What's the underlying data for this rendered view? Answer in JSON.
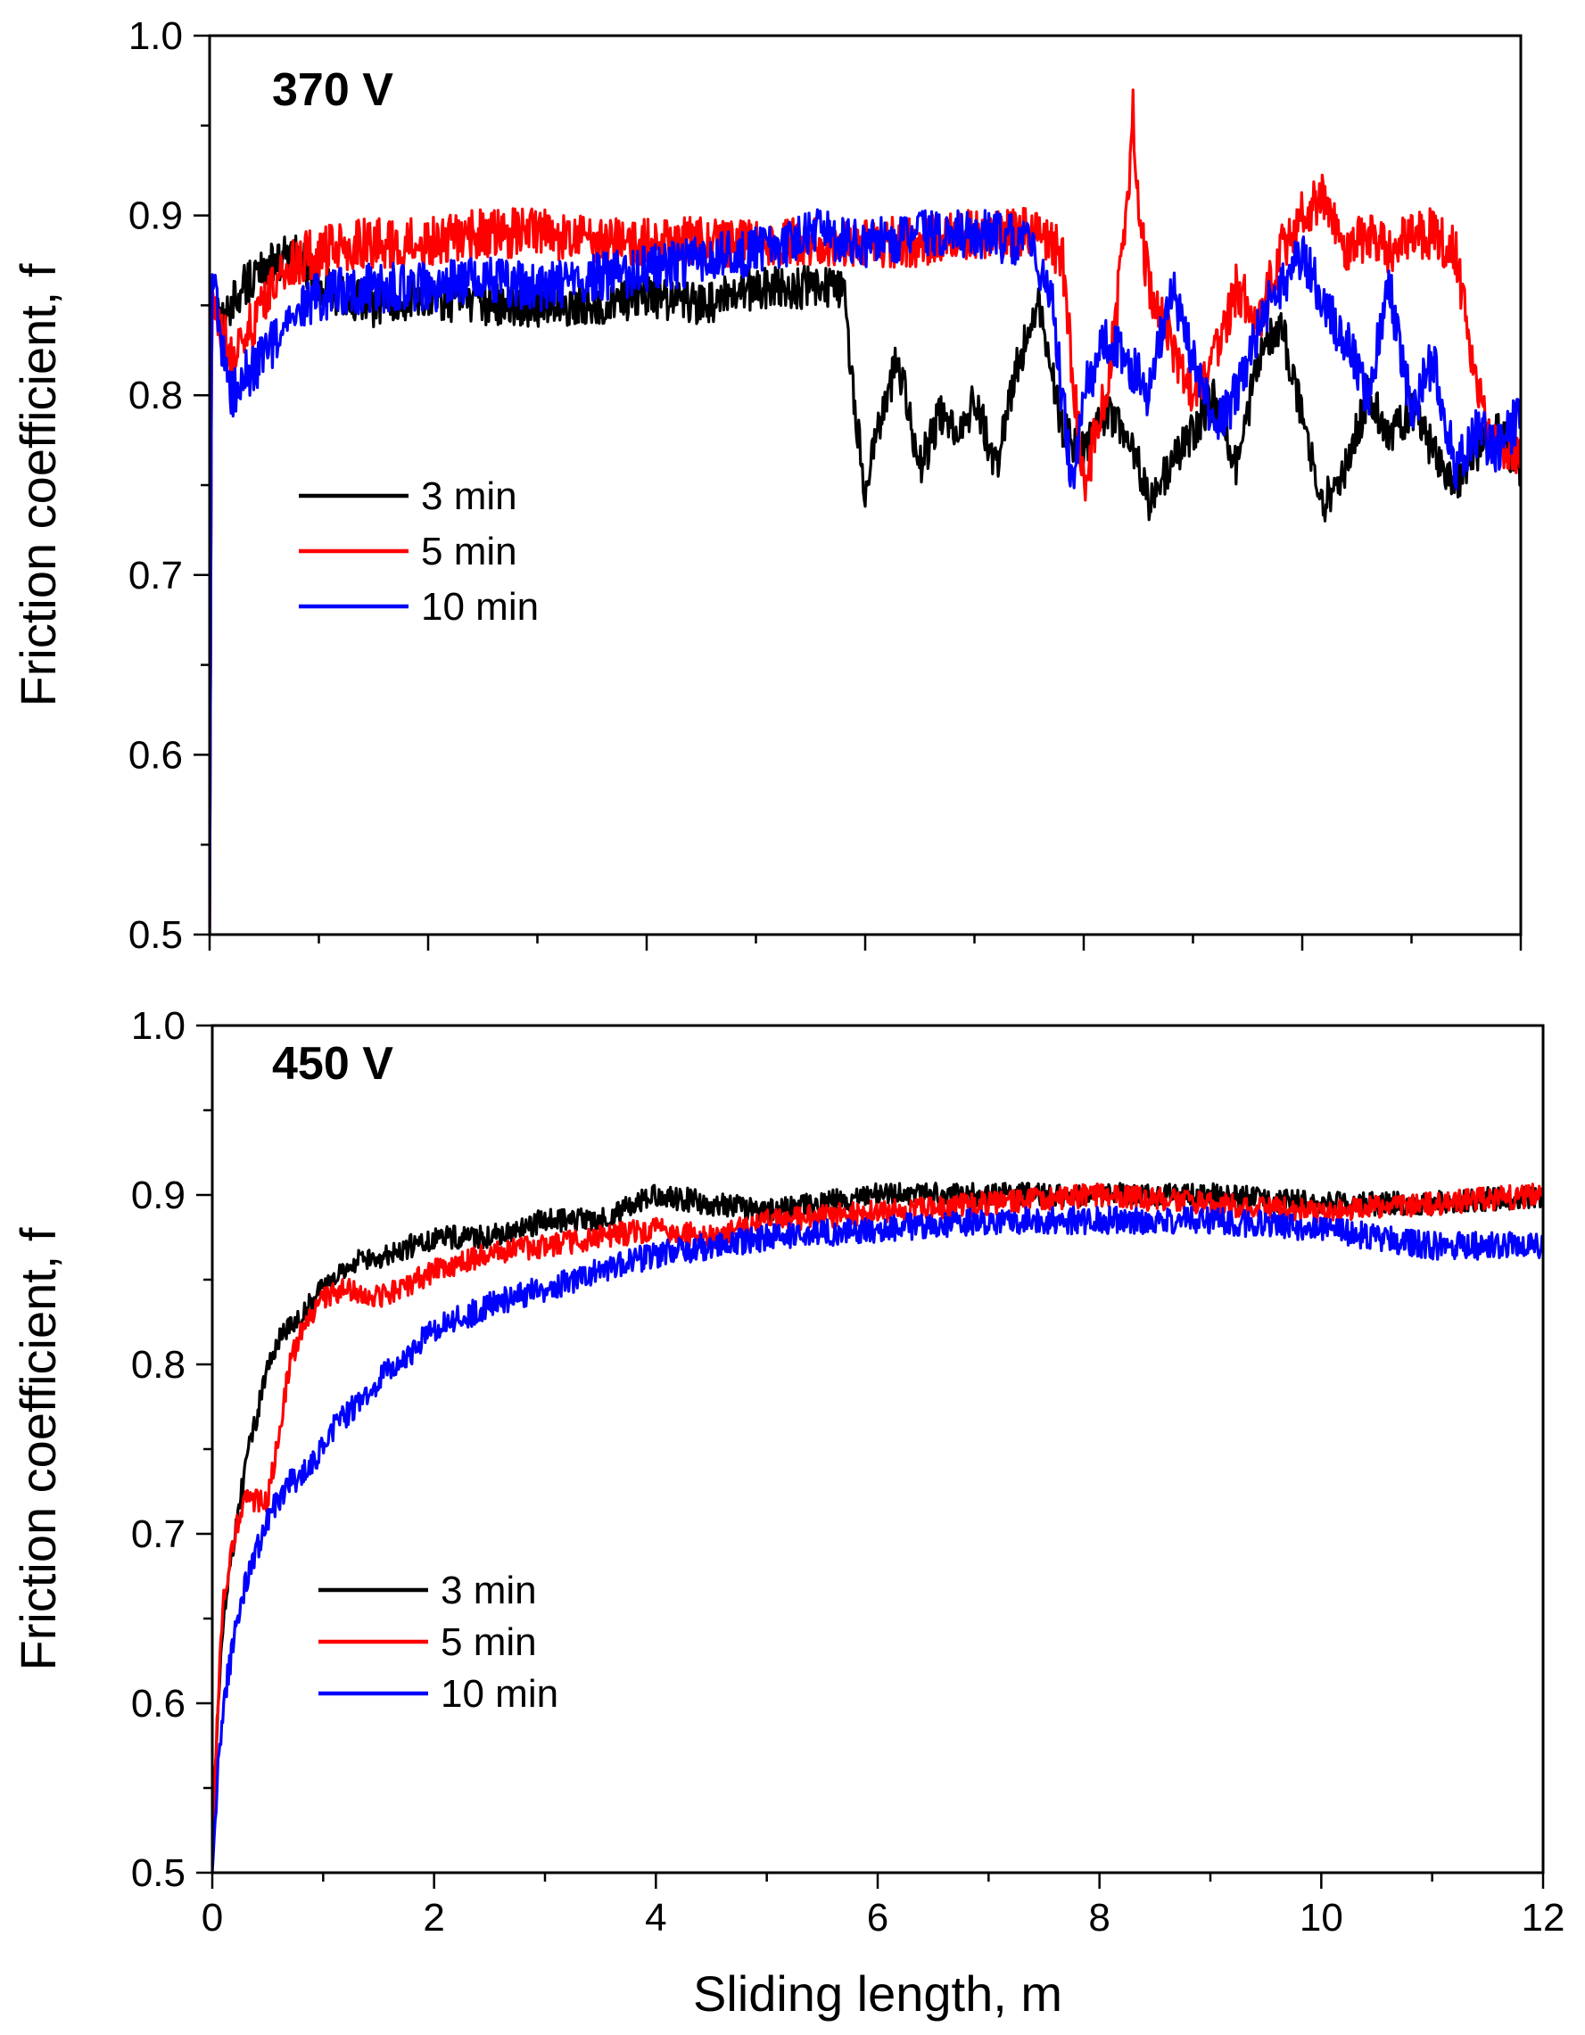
{
  "chart_data": [
    {
      "type": "line",
      "title": "370 V",
      "xlabel": "",
      "ylabel": "Friction coefficient, f",
      "xlim": [
        0,
        12
      ],
      "ylim": [
        0.5,
        1.0
      ],
      "x_ticks": [
        0,
        2,
        4,
        6,
        8,
        10,
        12
      ],
      "x_tick_labels": [
        "",
        "",
        "",
        "",
        "",
        "",
        ""
      ],
      "y_ticks": [
        0.5,
        0.6,
        0.7,
        0.8,
        0.9,
        1.0
      ],
      "y_tick_labels": [
        "0.5",
        "0.6",
        "0.7",
        "0.8",
        "0.9",
        "1.0"
      ],
      "legend_position": "middle-left",
      "series": [
        {
          "name": "3 min",
          "color": "#000000",
          "x": [
            0,
            0.02,
            0.1,
            0.3,
            0.5,
            0.8,
            1.0,
            1.5,
            2.0,
            2.5,
            3.0,
            3.5,
            4.0,
            4.5,
            5.0,
            5.5,
            5.8,
            5.9,
            6.0,
            6.1,
            6.3,
            6.5,
            6.7,
            6.9,
            7.0,
            7.2,
            7.4,
            7.6,
            7.8,
            8.0,
            8.2,
            8.4,
            8.6,
            8.8,
            9.0,
            9.2,
            9.4,
            9.6,
            9.8,
            10.0,
            10.2,
            10.4,
            10.6,
            10.8,
            11.0,
            11.2,
            11.4,
            11.6,
            11.8,
            12.0
          ],
          "values": [
            0.5,
            0.86,
            0.84,
            0.86,
            0.87,
            0.88,
            0.86,
            0.85,
            0.855,
            0.85,
            0.85,
            0.85,
            0.855,
            0.85,
            0.86,
            0.86,
            0.86,
            0.8,
            0.74,
            0.78,
            0.82,
            0.76,
            0.79,
            0.78,
            0.8,
            0.76,
            0.82,
            0.85,
            0.78,
            0.77,
            0.79,
            0.78,
            0.74,
            0.76,
            0.78,
            0.8,
            0.76,
            0.82,
            0.84,
            0.79,
            0.74,
            0.76,
            0.8,
            0.78,
            0.79,
            0.77,
            0.75,
            0.77,
            0.78,
            0.76
          ]
        },
        {
          "name": "5 min",
          "color": "#ff0000",
          "x": [
            0,
            0.02,
            0.1,
            0.2,
            0.4,
            0.6,
            0.8,
            1.0,
            1.5,
            2.0,
            2.5,
            3.0,
            3.5,
            4.0,
            4.5,
            5.0,
            5.5,
            6.0,
            6.5,
            7.0,
            7.5,
            7.8,
            7.9,
            8.0,
            8.2,
            8.4,
            8.45,
            8.5,
            8.6,
            8.8,
            9.0,
            9.2,
            9.4,
            9.6,
            9.8,
            10.0,
            10.2,
            10.4,
            10.6,
            10.8,
            11.0,
            11.2,
            11.4,
            11.6,
            11.8,
            12.0
          ],
          "values": [
            0.5,
            0.86,
            0.84,
            0.82,
            0.84,
            0.86,
            0.875,
            0.88,
            0.885,
            0.885,
            0.89,
            0.89,
            0.885,
            0.885,
            0.885,
            0.885,
            0.885,
            0.885,
            0.885,
            0.89,
            0.89,
            0.88,
            0.81,
            0.75,
            0.8,
            0.9,
            0.96,
            0.9,
            0.86,
            0.83,
            0.8,
            0.82,
            0.86,
            0.84,
            0.88,
            0.9,
            0.91,
            0.88,
            0.89,
            0.88,
            0.89,
            0.89,
            0.88,
            0.8,
            0.77,
            0.77
          ]
        },
        {
          "name": "10 min",
          "color": "#0000ff",
          "x": [
            0,
            0.02,
            0.1,
            0.2,
            0.3,
            0.5,
            0.7,
            1.0,
            1.5,
            2.0,
            2.5,
            3.0,
            3.5,
            4.0,
            4.5,
            5.0,
            5.5,
            6.0,
            6.5,
            7.0,
            7.5,
            7.7,
            7.8,
            7.9,
            8.0,
            8.2,
            8.4,
            8.6,
            8.8,
            9.0,
            9.2,
            9.4,
            9.6,
            9.8,
            10.0,
            10.2,
            10.4,
            10.6,
            10.8,
            11.0,
            11.2,
            11.4,
            11.6,
            11.8,
            12.0
          ],
          "values": [
            0.5,
            0.87,
            0.83,
            0.8,
            0.81,
            0.82,
            0.84,
            0.855,
            0.86,
            0.86,
            0.865,
            0.86,
            0.865,
            0.87,
            0.875,
            0.88,
            0.89,
            0.885,
            0.89,
            0.89,
            0.885,
            0.86,
            0.8,
            0.75,
            0.8,
            0.83,
            0.82,
            0.8,
            0.86,
            0.82,
            0.78,
            0.8,
            0.84,
            0.86,
            0.88,
            0.85,
            0.83,
            0.8,
            0.86,
            0.79,
            0.82,
            0.76,
            0.78,
            0.77,
            0.79
          ]
        }
      ]
    },
    {
      "type": "line",
      "title": "450 V",
      "xlabel": "Sliding length, m",
      "ylabel": "Friction coefficient, f",
      "xlim": [
        0,
        12
      ],
      "ylim": [
        0.5,
        1.0
      ],
      "x_ticks": [
        0,
        2,
        4,
        6,
        8,
        10,
        12
      ],
      "x_tick_labels": [
        "0",
        "2",
        "4",
        "6",
        "8",
        "10",
        "12"
      ],
      "y_ticks": [
        0.5,
        0.6,
        0.7,
        0.8,
        0.9,
        1.0
      ],
      "y_tick_labels": [
        "0.5",
        "0.6",
        "0.7",
        "0.8",
        "0.9",
        "1.0"
      ],
      "legend_position": "lower-left",
      "series": [
        {
          "name": "3 min",
          "color": "#000000",
          "x": [
            0,
            0.05,
            0.1,
            0.2,
            0.3,
            0.4,
            0.5,
            0.6,
            0.8,
            1.0,
            1.3,
            1.6,
            2.0,
            2.5,
            3.0,
            3.5,
            4.0,
            4.5,
            5.0,
            6.0,
            7.0,
            8.0,
            9.0,
            10.0,
            11.0,
            12.0
          ],
          "values": [
            0.52,
            0.6,
            0.65,
            0.7,
            0.74,
            0.77,
            0.8,
            0.815,
            0.83,
            0.845,
            0.86,
            0.865,
            0.875,
            0.875,
            0.885,
            0.885,
            0.9,
            0.895,
            0.89,
            0.9,
            0.9,
            0.9,
            0.9,
            0.895,
            0.895,
            0.9
          ]
        },
        {
          "name": "5 min",
          "color": "#ff0000",
          "x": [
            0,
            0.05,
            0.1,
            0.2,
            0.3,
            0.4,
            0.5,
            0.6,
            0.7,
            0.8,
            1.0,
            1.2,
            1.5,
            1.7,
            2.0,
            2.5,
            3.0,
            3.5,
            4.0,
            4.5,
            5.0,
            6.0,
            7.0,
            8.0,
            9.0,
            10.0,
            11.0,
            12.0
          ],
          "values": [
            0.52,
            0.6,
            0.66,
            0.7,
            0.72,
            0.72,
            0.72,
            0.76,
            0.8,
            0.82,
            0.84,
            0.845,
            0.84,
            0.845,
            0.855,
            0.865,
            0.87,
            0.875,
            0.88,
            0.875,
            0.885,
            0.89,
            0.895,
            0.9,
            0.895,
            0.89,
            0.895,
            0.9
          ]
        },
        {
          "name": "10 min",
          "color": "#0000ff",
          "x": [
            0,
            0.05,
            0.1,
            0.2,
            0.3,
            0.4,
            0.5,
            0.7,
            0.9,
            1.0,
            1.2,
            1.5,
            2.0,
            2.5,
            3.0,
            3.5,
            4.0,
            4.5,
            5.0,
            6.0,
            7.0,
            8.0,
            9.0,
            10.0,
            10.5,
            11.0,
            11.5,
            12.0
          ],
          "values": [
            0.5,
            0.56,
            0.6,
            0.64,
            0.67,
            0.69,
            0.71,
            0.73,
            0.74,
            0.755,
            0.77,
            0.79,
            0.82,
            0.835,
            0.845,
            0.855,
            0.865,
            0.87,
            0.875,
            0.88,
            0.885,
            0.885,
            0.885,
            0.88,
            0.875,
            0.87,
            0.87,
            0.87
          ]
        }
      ]
    }
  ]
}
